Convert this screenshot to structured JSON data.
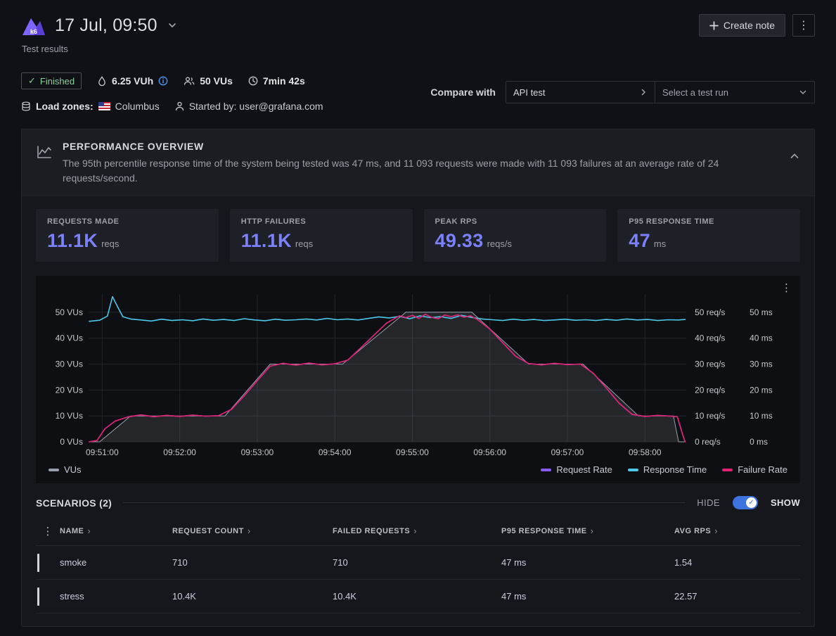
{
  "colors": {
    "accent": "#7c81fb",
    "toggle": "#3d73de",
    "finished_green": "#8bcf9b",
    "info_blue": "#4a9df8"
  },
  "header": {
    "logo_text": "k6",
    "title": "17 Jul, 09:50",
    "subtitle": "Test results",
    "create_note_label": "Create note"
  },
  "status": {
    "finished_label": "Finished",
    "vuh": "6.25 VUh",
    "vus": "50 VUs",
    "duration": "7min 42s",
    "load_zones_label": "Load zones:",
    "load_zone": "Columbus",
    "started_by": "Started by: user@grafana.com",
    "compare_label": "Compare with",
    "compare_test": "API test",
    "compare_placeholder": "Select a test run"
  },
  "overview": {
    "title": "PERFORMANCE OVERVIEW",
    "description": "The 95th percentile response time of the system being tested was 47 ms, and 11 093 requests were made with 11 093 failures at an average rate of 24 requests/second."
  },
  "stats": [
    {
      "label": "REQUESTS MADE",
      "value": "11.1K",
      "unit": "reqs"
    },
    {
      "label": "HTTP FAILURES",
      "value": "11.1K",
      "unit": "reqs"
    },
    {
      "label": "PEAK RPS",
      "value": "49.33",
      "unit": "reqs/s"
    },
    {
      "label": "P95 RESPONSE TIME",
      "value": "47",
      "unit": "ms"
    }
  ],
  "scenarios": {
    "title": "SCENARIOS (2)",
    "hide_label": "HIDE",
    "show_label": "SHOW"
  },
  "table": {
    "columns": [
      "NAME",
      "REQUEST COUNT",
      "FAILED REQUESTS",
      "P95 RESPONSE TIME",
      "AVG RPS"
    ],
    "rows": [
      {
        "name": "smoke",
        "request_count": "710",
        "failed_requests": "710",
        "p95": "47 ms",
        "avg_rps": "1.54"
      },
      {
        "name": "stress",
        "request_count": "10.4K",
        "failed_requests": "10.4K",
        "p95": "47 ms",
        "avg_rps": "22.57"
      }
    ]
  },
  "chart_data": {
    "type": "line",
    "title": "Performance overview chart",
    "x_unit": "seconds from test start (09:50:50)",
    "x_range": [
      0,
      462
    ],
    "y_range": [
      0,
      57
    ],
    "y_ticks": [
      0,
      10,
      20,
      30,
      40,
      50
    ],
    "axes": {
      "left_suffix": " VUs",
      "right1_suffix": " req/s",
      "right2_suffix": " ms"
    },
    "x_ticks": [
      {
        "t": 10,
        "label": "09:51:00"
      },
      {
        "t": 70,
        "label": "09:52:00"
      },
      {
        "t": 130,
        "label": "09:53:00"
      },
      {
        "t": 190,
        "label": "09:54:00"
      },
      {
        "t": 250,
        "label": "09:55:00"
      },
      {
        "t": 310,
        "label": "09:56:00"
      },
      {
        "t": 370,
        "label": "09:57:00"
      },
      {
        "t": 430,
        "label": "09:58:00"
      }
    ],
    "series": [
      {
        "name": "VUs",
        "type": "area",
        "color": "#9aa0ab",
        "fill": "rgba(154,160,171,0.16)",
        "points": [
          [
            0,
            0
          ],
          [
            8,
            0
          ],
          [
            32,
            10
          ],
          [
            105,
            10
          ],
          [
            140,
            30
          ],
          [
            196,
            30
          ],
          [
            245,
            50
          ],
          [
            296,
            50
          ],
          [
            340,
            30
          ],
          [
            382,
            30
          ],
          [
            425,
            10
          ],
          [
            452,
            10
          ],
          [
            456,
            0
          ],
          [
            461,
            0
          ]
        ]
      },
      {
        "name": "Request Rate",
        "type": "line",
        "color": "#8a5cf5",
        "points": [
          [
            0,
            0
          ],
          [
            6,
            0.5
          ],
          [
            12,
            5
          ],
          [
            20,
            8
          ],
          [
            30,
            9.6
          ],
          [
            40,
            10.4
          ],
          [
            50,
            9.7
          ],
          [
            60,
            10.2
          ],
          [
            70,
            9.8
          ],
          [
            80,
            10.3
          ],
          [
            90,
            9.9
          ],
          [
            100,
            10.1
          ],
          [
            110,
            12.5
          ],
          [
            120,
            17.8
          ],
          [
            130,
            23.6
          ],
          [
            140,
            29.2
          ],
          [
            150,
            30.3
          ],
          [
            160,
            29.6
          ],
          [
            170,
            30.4
          ],
          [
            180,
            29.7
          ],
          [
            190,
            30.1
          ],
          [
            200,
            31.5
          ],
          [
            210,
            36.2
          ],
          [
            220,
            41
          ],
          [
            230,
            45.8
          ],
          [
            240,
            48.6
          ],
          [
            245,
            47.9
          ],
          [
            250,
            48.8
          ],
          [
            255,
            47.6
          ],
          [
            260,
            49.2
          ],
          [
            265,
            48
          ],
          [
            270,
            47.5
          ],
          [
            275,
            48.9
          ],
          [
            280,
            48.3
          ],
          [
            285,
            49
          ],
          [
            290,
            48.1
          ],
          [
            295,
            48.6
          ],
          [
            300,
            47.3
          ],
          [
            310,
            43.5
          ],
          [
            320,
            38.2
          ],
          [
            330,
            33
          ],
          [
            340,
            30.2
          ],
          [
            350,
            29.7
          ],
          [
            360,
            30.3
          ],
          [
            370,
            29.8
          ],
          [
            380,
            30
          ],
          [
            390,
            26.5
          ],
          [
            400,
            20.8
          ],
          [
            410,
            14.9
          ],
          [
            420,
            10.6
          ],
          [
            430,
            9.8
          ],
          [
            440,
            10.2
          ],
          [
            450,
            9.9
          ],
          [
            455,
            9.7
          ],
          [
            459,
            3
          ],
          [
            461,
            0
          ]
        ]
      },
      {
        "name": "Response Time",
        "type": "line",
        "color": "#4cc8ea",
        "points": [
          [
            0,
            46.5
          ],
          [
            8,
            46.9
          ],
          [
            14,
            48.5
          ],
          [
            18,
            56
          ],
          [
            22,
            52
          ],
          [
            26,
            48.3
          ],
          [
            32,
            47.4
          ],
          [
            40,
            47
          ],
          [
            48,
            46.6
          ],
          [
            56,
            47.3
          ],
          [
            64,
            46.8
          ],
          [
            72,
            47.1
          ],
          [
            80,
            46.7
          ],
          [
            88,
            47.4
          ],
          [
            96,
            46.9
          ],
          [
            104,
            47.2
          ],
          [
            112,
            46.8
          ],
          [
            120,
            47.5
          ],
          [
            128,
            47
          ],
          [
            136,
            46.7
          ],
          [
            144,
            47.3
          ],
          [
            152,
            46.9
          ],
          [
            160,
            47.1
          ],
          [
            168,
            47.4
          ],
          [
            176,
            47
          ],
          [
            184,
            47.6
          ],
          [
            192,
            47.1
          ],
          [
            200,
            47.4
          ],
          [
            208,
            47
          ],
          [
            216,
            47.6
          ],
          [
            224,
            48.2
          ],
          [
            232,
            47.8
          ],
          [
            240,
            48.4
          ],
          [
            248,
            47.5
          ],
          [
            256,
            48.6
          ],
          [
            264,
            47.9
          ],
          [
            272,
            48.3
          ],
          [
            280,
            47.6
          ],
          [
            288,
            48.8
          ],
          [
            296,
            48
          ],
          [
            304,
            47.4
          ],
          [
            312,
            47.1
          ],
          [
            320,
            46.8
          ],
          [
            328,
            47.3
          ],
          [
            336,
            46.9
          ],
          [
            344,
            47.2
          ],
          [
            352,
            46.8
          ],
          [
            360,
            47
          ],
          [
            368,
            47.3
          ],
          [
            376,
            46.9
          ],
          [
            384,
            47.1
          ],
          [
            392,
            46.8
          ],
          [
            400,
            47.2
          ],
          [
            408,
            46.9
          ],
          [
            416,
            47.4
          ],
          [
            424,
            47
          ],
          [
            432,
            47.2
          ],
          [
            440,
            46.8
          ],
          [
            448,
            47.1
          ],
          [
            456,
            47
          ],
          [
            461,
            47.2
          ]
        ]
      },
      {
        "name": "Failure Rate",
        "type": "line",
        "color": "#e0226e",
        "points": [
          [
            0,
            0
          ],
          [
            6,
            0.5
          ],
          [
            12,
            5
          ],
          [
            20,
            8
          ],
          [
            30,
            9.6
          ],
          [
            40,
            10.4
          ],
          [
            50,
            9.7
          ],
          [
            60,
            10.2
          ],
          [
            70,
            9.8
          ],
          [
            80,
            10.3
          ],
          [
            90,
            9.9
          ],
          [
            100,
            10.1
          ],
          [
            110,
            12.5
          ],
          [
            120,
            17.8
          ],
          [
            130,
            23.6
          ],
          [
            140,
            29.2
          ],
          [
            150,
            30.3
          ],
          [
            160,
            29.6
          ],
          [
            170,
            30.4
          ],
          [
            180,
            29.7
          ],
          [
            190,
            30.1
          ],
          [
            200,
            31.5
          ],
          [
            210,
            36.2
          ],
          [
            220,
            41
          ],
          [
            230,
            45.8
          ],
          [
            240,
            48.6
          ],
          [
            245,
            47.9
          ],
          [
            250,
            48.8
          ],
          [
            255,
            47.6
          ],
          [
            260,
            49.2
          ],
          [
            265,
            48
          ],
          [
            270,
            47.5
          ],
          [
            275,
            48.9
          ],
          [
            280,
            48.3
          ],
          [
            285,
            49
          ],
          [
            290,
            48.1
          ],
          [
            295,
            48.6
          ],
          [
            300,
            47.3
          ],
          [
            310,
            43.5
          ],
          [
            320,
            38.2
          ],
          [
            330,
            33
          ],
          [
            340,
            30.2
          ],
          [
            350,
            29.7
          ],
          [
            360,
            30.3
          ],
          [
            370,
            29.8
          ],
          [
            380,
            30
          ],
          [
            390,
            26.5
          ],
          [
            400,
            20.8
          ],
          [
            410,
            14.9
          ],
          [
            420,
            10.6
          ],
          [
            430,
            9.8
          ],
          [
            440,
            10.2
          ],
          [
            450,
            9.9
          ],
          [
            455,
            9.7
          ],
          [
            459,
            3
          ],
          [
            461,
            0
          ]
        ]
      }
    ],
    "legend_position": "bottom"
  }
}
